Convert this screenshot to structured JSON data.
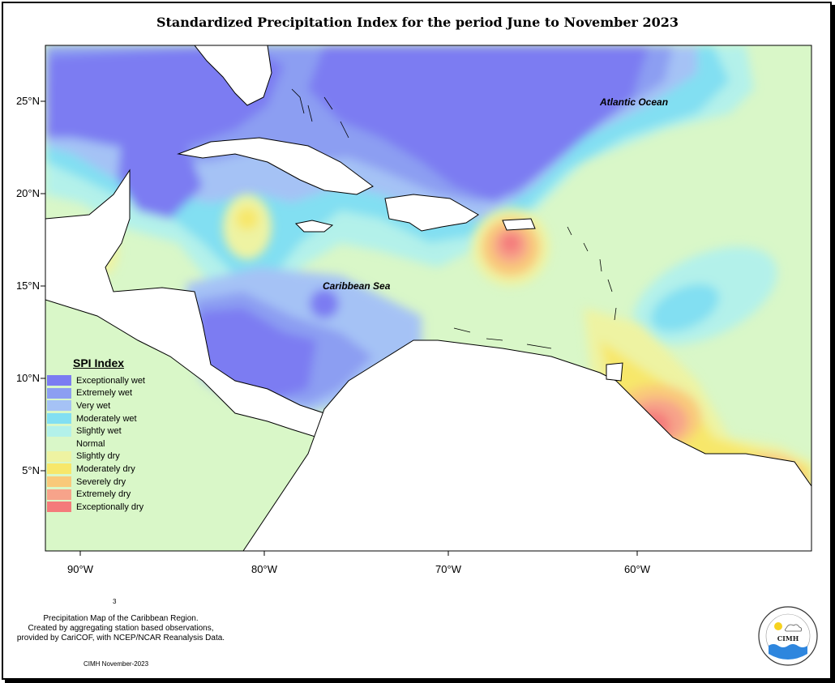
{
  "title": "Standardized Precipitation Index for the period June to November 2023",
  "axes": {
    "lat_ticks": [
      "25°N",
      "20°N",
      "15°N",
      "10°N",
      "5°N"
    ],
    "lon_ticks": [
      "90°W",
      "80°W",
      "70°W",
      "60°W"
    ]
  },
  "places": {
    "atlantic": "Atlantic Ocean",
    "caribbean": "Caribbean Sea"
  },
  "legend": {
    "title": "SPI Index",
    "items": [
      {
        "label": "Exceptionally wet",
        "color": "#7b7cf2"
      },
      {
        "label": "Extremely wet",
        "color": "#8c9ef2"
      },
      {
        "label": "Very wet",
        "color": "#a5c2f5"
      },
      {
        "label": "Moderately wet",
        "color": "#82dff2"
      },
      {
        "label": "Slightly wet",
        "color": "#b3f1ea"
      },
      {
        "label": "Normal",
        "color": "#d9f7c8"
      },
      {
        "label": "Slightly dry",
        "color": "#eef3a2"
      },
      {
        "label": "Moderately dry",
        "color": "#f7e76a"
      },
      {
        "label": "Severely dry",
        "color": "#f9c97a"
      },
      {
        "label": "Extremely dry",
        "color": "#f7a38a"
      },
      {
        "label": "Exceptionally dry",
        "color": "#f47b7b"
      }
    ]
  },
  "footnote": {
    "line1": "Precipitation Map of the Caribbean Region.",
    "line2": "Created by aggregating station based observations,",
    "line3": "provided by CariCOF, with NCEP/NCAR Reanalysis Data."
  },
  "small_mark": "3",
  "credit": "CIMH November-2023",
  "logo": {
    "text": "CIMH"
  }
}
